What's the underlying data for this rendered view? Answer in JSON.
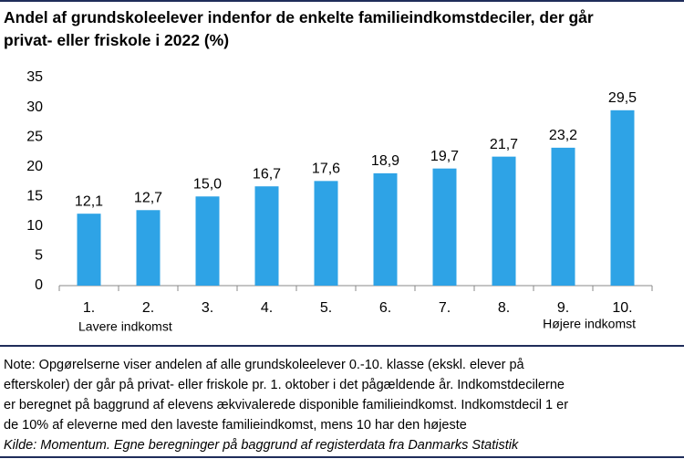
{
  "chart_data": {
    "type": "bar",
    "title": [
      "Andel af grundskoleelever indenfor de enkelte familieindkomstdeciler, der går",
      "privat- eller friskole i 2022 (%)"
    ],
    "categories": [
      "1.",
      "2.",
      "3.",
      "4.",
      "5.",
      "6.",
      "7.",
      "8.",
      "9.",
      "10."
    ],
    "values": [
      12.1,
      12.7,
      15.0,
      16.7,
      17.6,
      18.9,
      19.7,
      21.7,
      23.2,
      29.5
    ],
    "value_labels": [
      "12,1",
      "12,7",
      "15,0",
      "16,7",
      "17,6",
      "18,9",
      "19,7",
      "21,7",
      "23,2",
      "29,5"
    ],
    "color": "#2ea3e6",
    "ylim": [
      0,
      35
    ],
    "yticks": [
      0,
      5,
      10,
      15,
      20,
      25,
      30,
      35
    ],
    "annotations": [
      "Lavere indkomst",
      "Højere indkomst"
    ],
    "note": [
      "Note: Opgørelserne viser andelen af alle grundskoleelever 0.-10. klasse (ekskl. elever på",
      "efterskoler) der går på privat- eller friskole pr. 1. oktober i det pågældende år. Indkomstdecilerne",
      "er beregnet på baggrund af elevens ækvivalerede disponible familieindkomst. Indkomstdecil 1 er",
      "de 10% af eleverne med den laveste familieindkomst, mens 10 har den højeste"
    ],
    "source": "Kilde: Momentum. Egne beregninger på baggrund af registerdata fra Danmarks Statistik"
  }
}
